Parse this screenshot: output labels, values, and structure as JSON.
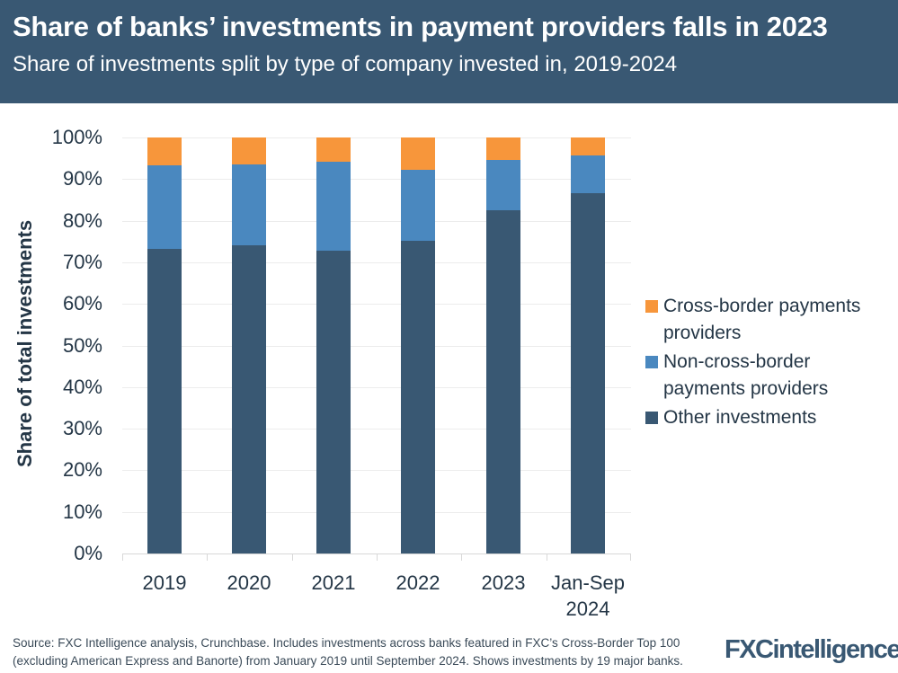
{
  "header": {
    "title": "Share of banks’ investments in payment providers falls in 2023",
    "subtitle": "Share of investments split by type of company invested in, 2019-2024"
  },
  "axes": {
    "ylabel": "Share of total investments",
    "yticks": [
      "100%",
      "90%",
      "80%",
      "70%",
      "60%",
      "50%",
      "40%",
      "30%",
      "20%",
      "10%",
      "0%"
    ],
    "xticks": [
      "2019",
      "2020",
      "2021",
      "2022",
      "2023",
      "Jan-Sep 2024"
    ]
  },
  "legend": {
    "items": [
      {
        "label": "Cross-border payments providers",
        "color": "#f7963b"
      },
      {
        "label": "Non-cross-border payments providers",
        "color": "#4a88bf"
      },
      {
        "label": "Other investments",
        "color": "#395873"
      }
    ]
  },
  "footer": {
    "source": "Source: FXC Intelligence analysis, Crunchbase. Includes investments across banks featured in FXC’s Cross-Border Top 100 (excluding American Express and Banorte) from January 2019 until September 2024. Shows investments by 19 major banks.",
    "logo_fxc": "FXC",
    "logo_intel": "intelligence"
  },
  "chart_data": {
    "type": "bar",
    "stacked": true,
    "title": "Share of banks’ investments in payment providers falls in 2023",
    "subtitle": "Share of investments split by type of company invested in, 2019-2024",
    "xlabel": "",
    "ylabel": "Share of total investments",
    "ylim": [
      0,
      100
    ],
    "y_unit": "%",
    "grid": true,
    "legend_position": "right",
    "categories": [
      "2019",
      "2020",
      "2021",
      "2022",
      "2023",
      "Jan-Sep 2024"
    ],
    "series": [
      {
        "name": "Other investments",
        "color": "#395873",
        "values": [
          73.2,
          74.1,
          72.8,
          75.2,
          82.5,
          86.6
        ]
      },
      {
        "name": "Non-cross-border payments providers",
        "color": "#4a88bf",
        "values": [
          20.1,
          19.4,
          21.4,
          17.0,
          12.1,
          9.1
        ]
      },
      {
        "name": "Cross-border payments providers",
        "color": "#f7963b",
        "values": [
          6.7,
          6.5,
          5.8,
          7.8,
          5.4,
          4.3
        ]
      }
    ]
  }
}
